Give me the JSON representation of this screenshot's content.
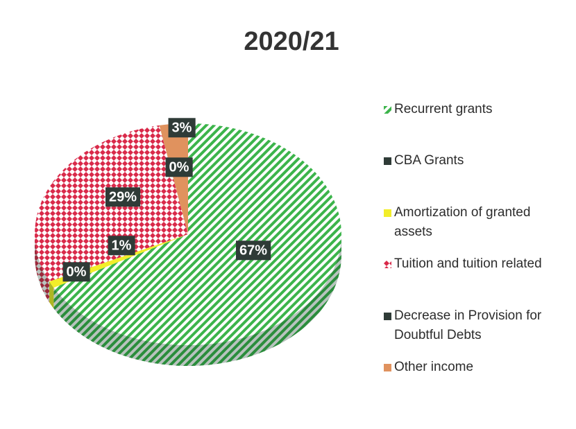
{
  "chart_data": {
    "type": "pie",
    "title": "2020/21",
    "categories": [
      "Recurrent grants",
      "CBA Grants",
      "Amortization of granted assets",
      "Tuition and tuition related",
      "Decrease in Provision for Doubtful Debts",
      "Other income"
    ],
    "values": [
      67,
      0,
      1,
      29,
      0,
      3
    ],
    "value_labels": [
      "67%",
      "0%",
      "1%",
      "29%",
      "0%",
      "3%"
    ],
    "colors": [
      "#3cb44b",
      "#2f3b37",
      "#f2ee2a",
      "#d92a4a",
      "#2f3b37",
      "#e0925e"
    ],
    "patterns": [
      "stripes",
      "solid",
      "solid",
      "diamonds",
      "solid",
      "solid"
    ],
    "legend": "right"
  }
}
